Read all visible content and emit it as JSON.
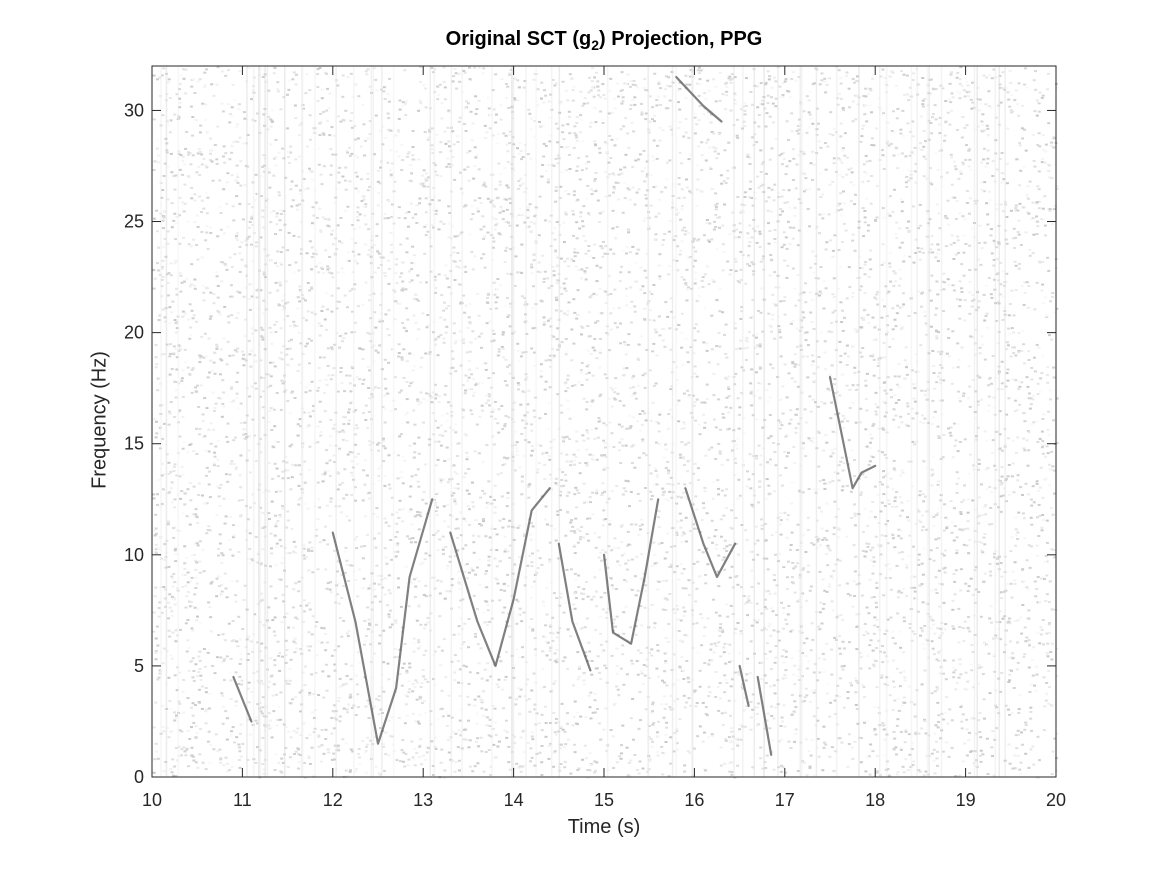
{
  "chart_data": {
    "type": "heatmap",
    "title_main": "Original SCT (g",
    "title_sub": "2",
    "title_tail": ") Projection, PPG",
    "xlabel": "Time (s)",
    "ylabel": "Frequency (Hz)",
    "xlim": [
      10,
      20
    ],
    "ylim": [
      0,
      32
    ],
    "xticks": [
      "10",
      "11",
      "12",
      "13",
      "14",
      "15",
      "16",
      "17",
      "18",
      "19",
      "20"
    ],
    "yticks": [
      "0",
      "5",
      "10",
      "15",
      "20",
      "25",
      "30"
    ],
    "colormap": "grayscale (white = low, black = high)",
    "background_color": "#ffffff",
    "ridges": [
      {
        "points": [
          [
            10.9,
            4.5
          ],
          [
            11.1,
            2.5
          ]
        ]
      },
      {
        "points": [
          [
            12.0,
            11.0
          ],
          [
            12.25,
            7.0
          ],
          [
            12.5,
            1.5
          ],
          [
            12.7,
            4.0
          ],
          [
            12.85,
            9.0
          ],
          [
            13.1,
            12.5
          ]
        ]
      },
      {
        "points": [
          [
            13.3,
            11.0
          ],
          [
            13.6,
            7.0
          ],
          [
            13.8,
            5.0
          ],
          [
            14.0,
            8.0
          ],
          [
            14.2,
            12.0
          ],
          [
            14.4,
            13.0
          ]
        ]
      },
      {
        "points": [
          [
            14.5,
            10.5
          ],
          [
            14.65,
            7.0
          ],
          [
            14.85,
            4.8
          ]
        ]
      },
      {
        "points": [
          [
            15.0,
            10.0
          ],
          [
            15.1,
            6.5
          ],
          [
            15.3,
            6.0
          ],
          [
            15.45,
            9.0
          ],
          [
            15.6,
            12.5
          ]
        ]
      },
      {
        "points": [
          [
            15.9,
            13.0
          ],
          [
            16.1,
            10.5
          ],
          [
            16.25,
            9.0
          ],
          [
            16.45,
            10.5
          ]
        ]
      },
      {
        "points": [
          [
            16.5,
            5.0
          ],
          [
            16.6,
            3.2
          ]
        ]
      },
      {
        "points": [
          [
            16.7,
            4.5
          ],
          [
            16.85,
            1.0
          ]
        ]
      },
      {
        "points": [
          [
            17.5,
            18.0
          ],
          [
            17.65,
            15.0
          ],
          [
            17.75,
            13.0
          ],
          [
            17.85,
            13.7
          ],
          [
            18.0,
            14.0
          ]
        ]
      },
      {
        "points": [
          [
            15.8,
            31.5
          ],
          [
            16.1,
            30.2
          ],
          [
            16.3,
            29.5
          ]
        ]
      }
    ]
  }
}
